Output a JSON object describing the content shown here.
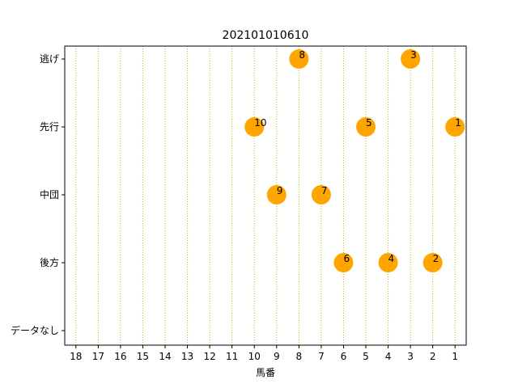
{
  "chart_data": {
    "type": "scatter",
    "title": "202101010610",
    "xlabel": "馬番",
    "ylabel": "",
    "x_ticks": [
      18,
      17,
      16,
      15,
      14,
      13,
      12,
      11,
      10,
      9,
      8,
      7,
      6,
      5,
      4,
      3,
      2,
      1
    ],
    "x_inverted": true,
    "xlim": [
      18.5,
      0.5
    ],
    "y_categories": [
      "逃げ",
      "先行",
      "中団",
      "後方",
      "データなし"
    ],
    "grid": "vertical dotted",
    "grid_color": "#c8b400",
    "marker_color": "#ffa500",
    "points": [
      {
        "horse": 8,
        "style": "逃げ"
      },
      {
        "horse": 3,
        "style": "逃げ"
      },
      {
        "horse": 10,
        "style": "先行"
      },
      {
        "horse": 5,
        "style": "先行"
      },
      {
        "horse": 1,
        "style": "先行"
      },
      {
        "horse": 9,
        "style": "中団"
      },
      {
        "horse": 7,
        "style": "中団"
      },
      {
        "horse": 6,
        "style": "後方"
      },
      {
        "horse": 4,
        "style": "後方"
      },
      {
        "horse": 2,
        "style": "後方"
      }
    ]
  }
}
